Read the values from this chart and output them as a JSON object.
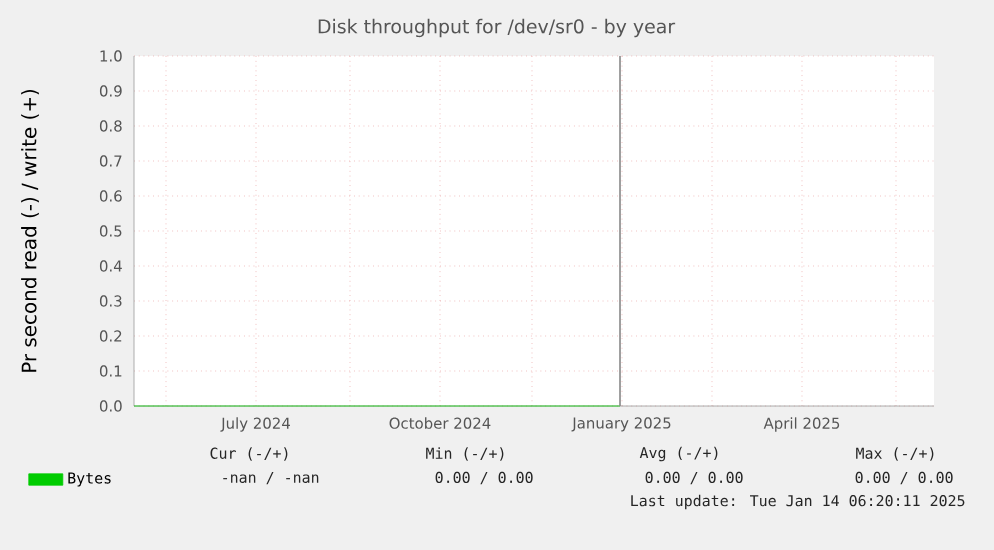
{
  "chart_data": {
    "type": "line",
    "title": "Disk throughput for /dev/sr0 - by year",
    "ylabel": "Pr second read (-) / write (+)",
    "x": [
      "2024-05-16",
      "2025-01-14"
    ],
    "series": [
      {
        "name": "Bytes",
        "color": "#00cc00",
        "values": [
          0,
          0
        ]
      }
    ],
    "xlim": [
      "2024-05-16",
      "2025-06-20"
    ],
    "xticks": [
      {
        "value": "2024-06-01",
        "label": null
      },
      {
        "value": "2024-07-16",
        "label": "July 2024"
      },
      {
        "value": "2024-09-01",
        "label": null
      },
      {
        "value": "2024-10-16",
        "label": "October 2024"
      },
      {
        "value": "2024-12-01",
        "label": null
      },
      {
        "value": "2025-01-15",
        "label": "January 2025"
      },
      {
        "value": "2025-03-01",
        "label": null
      },
      {
        "value": "2025-04-15",
        "label": "April 2025"
      },
      {
        "value": "2025-06-01",
        "label": null
      }
    ],
    "ylim": [
      0,
      1
    ],
    "yticks": [
      {
        "value": 0,
        "label": "0.0"
      },
      0.1,
      0.2,
      0.3,
      0.4,
      0.5,
      0.6,
      0.7,
      0.8,
      0.9,
      {
        "value": 1,
        "label": "1.0"
      }
    ],
    "ref_lines": [
      {
        "axis": "x",
        "value": "2025-01-14",
        "color": "#888888"
      }
    ],
    "grid": true,
    "legend": "bottom left",
    "annotations": [
      "Cur (-/+)",
      "Min (-/+)",
      "Avg (-/+)",
      "Max (-/+)",
      "-nan /  -nan",
      "0.00 /  0.00",
      "0.00 /  0.00",
      "0.00 /  0.00",
      "Last update: Tue Jan 14 06:20:11 2025"
    ]
  }
}
